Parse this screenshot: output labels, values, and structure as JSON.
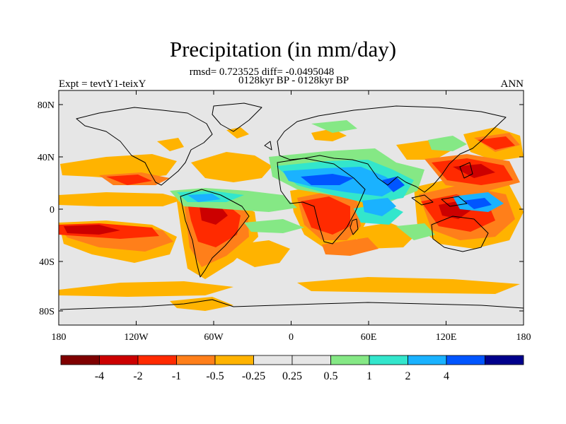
{
  "title": "Precipitation (in mm/day)",
  "stats": "rmsd= 0.723525 diff= -0.0495048",
  "period": "0128kyr BP - 0128kyr BP",
  "experiment": "Expt = tevtY1-teixY",
  "season": "ANN",
  "lat_ticks": [
    "80N",
    "40N",
    "0",
    "40S",
    "80S"
  ],
  "lon_ticks": [
    "180",
    "120W",
    "60W",
    "0",
    "60E",
    "120E",
    "180"
  ],
  "colorbar": {
    "colors": [
      "#7f0000",
      "#cc0000",
      "#ff2a00",
      "#ff7f1a",
      "#ffb300",
      "#e6e6e6",
      "#e6e6e6",
      "#85e885",
      "#33e6cc",
      "#1ab2ff",
      "#0055ff",
      "#00008c"
    ],
    "labels": [
      "-4",
      "-2",
      "-1",
      "-0.5",
      "-0.25",
      "0.25",
      "0.5",
      "1",
      "2",
      "4"
    ]
  },
  "map_colors": {
    "background": "#e6e6e6",
    "coast": "#000000"
  }
}
